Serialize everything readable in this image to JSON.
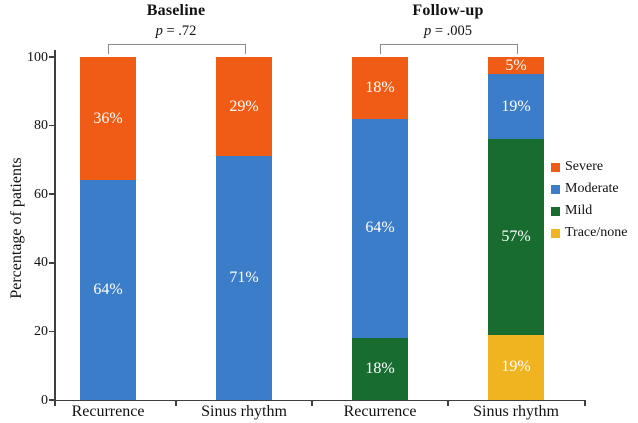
{
  "chart_data": {
    "type": "bar",
    "stacked": true,
    "orientation": "vertical",
    "ylabel": "Percentage of patients",
    "ylim": [
      0,
      100
    ],
    "yticks": [
      0,
      20,
      40,
      60,
      80,
      100
    ],
    "grid": false,
    "legend_position": "right",
    "groups": [
      {
        "label": "Baseline"
      },
      {
        "label": "Follow-up"
      }
    ],
    "annotations": [
      {
        "group": "Baseline",
        "text": "p = .72"
      },
      {
        "group": "Follow-up",
        "text": "p = .005"
      }
    ],
    "categories": [
      "Recurrence",
      "Sinus rhythm",
      "Recurrence",
      "Sinus rhythm"
    ],
    "category_groups": [
      "Baseline",
      "Baseline",
      "Follow-up",
      "Follow-up"
    ],
    "series": [
      {
        "name": "Severe",
        "color": "#F05C15",
        "values": [
          36,
          29,
          18,
          5
        ]
      },
      {
        "name": "Moderate",
        "color": "#3B7DC8",
        "values": [
          64,
          71,
          64,
          19
        ]
      },
      {
        "name": "Mild",
        "color": "#186C30",
        "values": [
          0,
          0,
          18,
          57
        ]
      },
      {
        "name": "Trace/none",
        "color": "#F0B420",
        "values": [
          0,
          0,
          0,
          19
        ]
      }
    ],
    "data_label_format": "{value}%",
    "data_label_color": "#ffffff"
  },
  "style": {
    "axis_color": "#3f3f3f",
    "bracket_color": "#8a8a8a",
    "background": "#ffffff"
  }
}
